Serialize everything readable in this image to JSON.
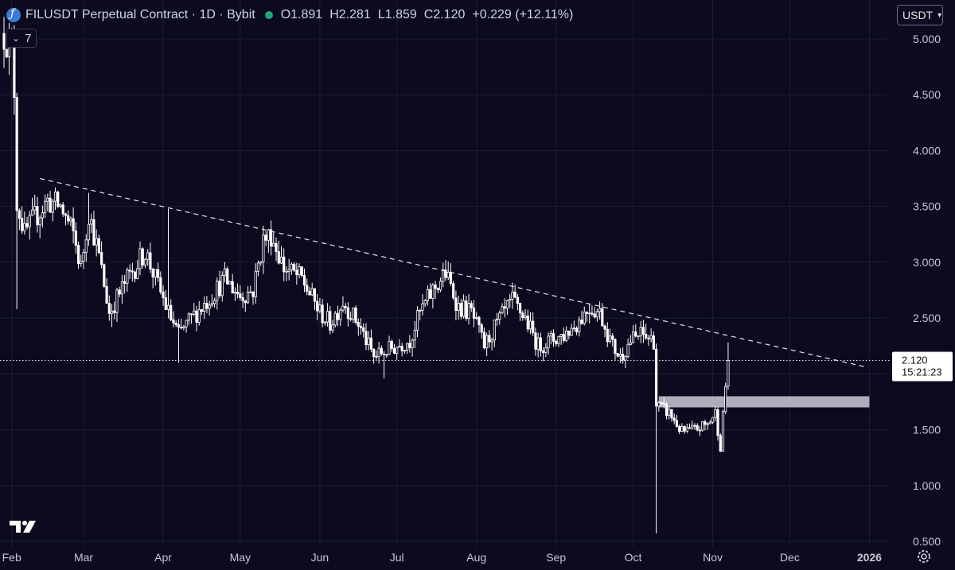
{
  "header": {
    "symbol": "FILUSDT Perpetual Contract · 1D · Bybit",
    "ohlc": [
      {
        "key": "O",
        "value": "1.891"
      },
      {
        "key": "H",
        "value": "2.281"
      },
      {
        "key": "L",
        "value": "1.859"
      },
      {
        "key": "C",
        "value": "2.120"
      }
    ],
    "change": "+0.229 (+12.11%)",
    "indicators_count": "7",
    "currency": "USDT"
  },
  "price_label": {
    "price": "2.120",
    "countdown": "15:21:23"
  },
  "colors": {
    "background": "#0b0a1f",
    "candles": "#ffffff",
    "grid": "#1e1d33",
    "trendline": "#ffffff",
    "zone": "#c9c9d6"
  },
  "chart_data": {
    "type": "candlestick",
    "ylim": [
      0.5,
      5.2
    ],
    "y_ticks": [
      "5.000",
      "4.500",
      "4.000",
      "3.500",
      "3.000",
      "2.500",
      "2.000",
      "1.500",
      "1.000",
      "0.500"
    ],
    "x_ticks": [
      "Feb",
      "Mar",
      "Apr",
      "May",
      "Jun",
      "Jul",
      "Aug",
      "Sep",
      "Oct",
      "Nov",
      "Dec",
      "2026"
    ],
    "x_range": [
      "2025-01-29",
      "2026-01-08"
    ],
    "current_price": 2.12,
    "last_bar": {
      "date": "2025-11-07",
      "open": 1.891,
      "high": 2.281,
      "low": 1.859,
      "close": 2.12
    },
    "price_path": [
      [
        "2025-01-29",
        5.05
      ],
      [
        "2025-02-01",
        4.9
      ],
      [
        "2025-02-02",
        4.55
      ],
      [
        "2025-02-03",
        3.55
      ],
      [
        "2025-02-06",
        3.25
      ],
      [
        "2025-02-10",
        3.4
      ],
      [
        "2025-02-15",
        3.55
      ],
      [
        "2025-02-20",
        3.5
      ],
      [
        "2025-02-25",
        3.25
      ],
      [
        "2025-02-28",
        2.95
      ],
      [
        "2025-03-03",
        3.45
      ],
      [
        "2025-03-07",
        3.05
      ],
      [
        "2025-03-11",
        2.55
      ],
      [
        "2025-03-18",
        2.85
      ],
      [
        "2025-03-25",
        3.1
      ],
      [
        "2025-03-29",
        2.85
      ],
      [
        "2025-04-03",
        2.55
      ],
      [
        "2025-04-07",
        2.35
      ],
      [
        "2025-04-12",
        2.5
      ],
      [
        "2025-04-18",
        2.65
      ],
      [
        "2025-04-25",
        2.85
      ],
      [
        "2025-05-01",
        2.7
      ],
      [
        "2025-05-06",
        2.75
      ],
      [
        "2025-05-10",
        3.2
      ],
      [
        "2025-05-13",
        3.25
      ],
      [
        "2025-05-18",
        2.95
      ],
      [
        "2025-05-25",
        2.85
      ],
      [
        "2025-06-01",
        2.55
      ],
      [
        "2025-06-05",
        2.45
      ],
      [
        "2025-06-10",
        2.65
      ],
      [
        "2025-06-16",
        2.45
      ],
      [
        "2025-06-22",
        2.15
      ],
      [
        "2025-06-26",
        2.2
      ],
      [
        "2025-07-01",
        2.25
      ],
      [
        "2025-07-06",
        2.3
      ],
      [
        "2025-07-10",
        2.55
      ],
      [
        "2025-07-15",
        2.75
      ],
      [
        "2025-07-20",
        2.9
      ],
      [
        "2025-07-25",
        2.6
      ],
      [
        "2025-07-30",
        2.55
      ],
      [
        "2025-08-04",
        2.25
      ],
      [
        "2025-08-09",
        2.45
      ],
      [
        "2025-08-15",
        2.65
      ],
      [
        "2025-08-20",
        2.5
      ],
      [
        "2025-08-25",
        2.25
      ],
      [
        "2025-08-30",
        2.3
      ],
      [
        "2025-09-04",
        2.35
      ],
      [
        "2025-09-09",
        2.45
      ],
      [
        "2025-09-14",
        2.6
      ],
      [
        "2025-09-18",
        2.55
      ],
      [
        "2025-09-23",
        2.25
      ],
      [
        "2025-09-26",
        2.15
      ],
      [
        "2025-09-30",
        2.3
      ],
      [
        "2025-10-04",
        2.35
      ],
      [
        "2025-10-09",
        2.3
      ],
      [
        "2025-10-10",
        1.72
      ],
      [
        "2025-10-15",
        1.65
      ],
      [
        "2025-10-20",
        1.48
      ],
      [
        "2025-10-25",
        1.5
      ],
      [
        "2025-10-30",
        1.55
      ],
      [
        "2025-11-02",
        1.65
      ],
      [
        "2025-11-04",
        1.35
      ],
      [
        "2025-11-06",
        1.89
      ],
      [
        "2025-11-07",
        2.12
      ]
    ],
    "wicks": [
      {
        "date": "2025-02-03",
        "low": 2.58
      },
      {
        "date": "2025-03-03",
        "high": 3.62
      },
      {
        "date": "2025-03-12",
        "low": 2.42
      },
      {
        "date": "2025-04-03",
        "high": 3.48
      },
      {
        "date": "2025-04-07",
        "low": 2.1
      },
      {
        "date": "2025-05-12",
        "high": 3.3
      },
      {
        "date": "2025-06-26",
        "low": 1.96
      },
      {
        "date": "2025-07-20",
        "high": 3.02
      },
      {
        "date": "2025-10-06",
        "high": 2.45
      },
      {
        "date": "2025-10-10",
        "low": 0.57
      },
      {
        "date": "2025-11-07",
        "high": 2.281
      }
    ],
    "trendline": {
      "start": [
        "2025-02-12",
        3.75
      ],
      "end": [
        "2025-12-31",
        2.06
      ],
      "style": "dashed"
    },
    "zone": {
      "start": "2025-10-11",
      "end": "2026-01-01",
      "top": 1.8,
      "bottom": 1.7
    },
    "grid": true
  }
}
